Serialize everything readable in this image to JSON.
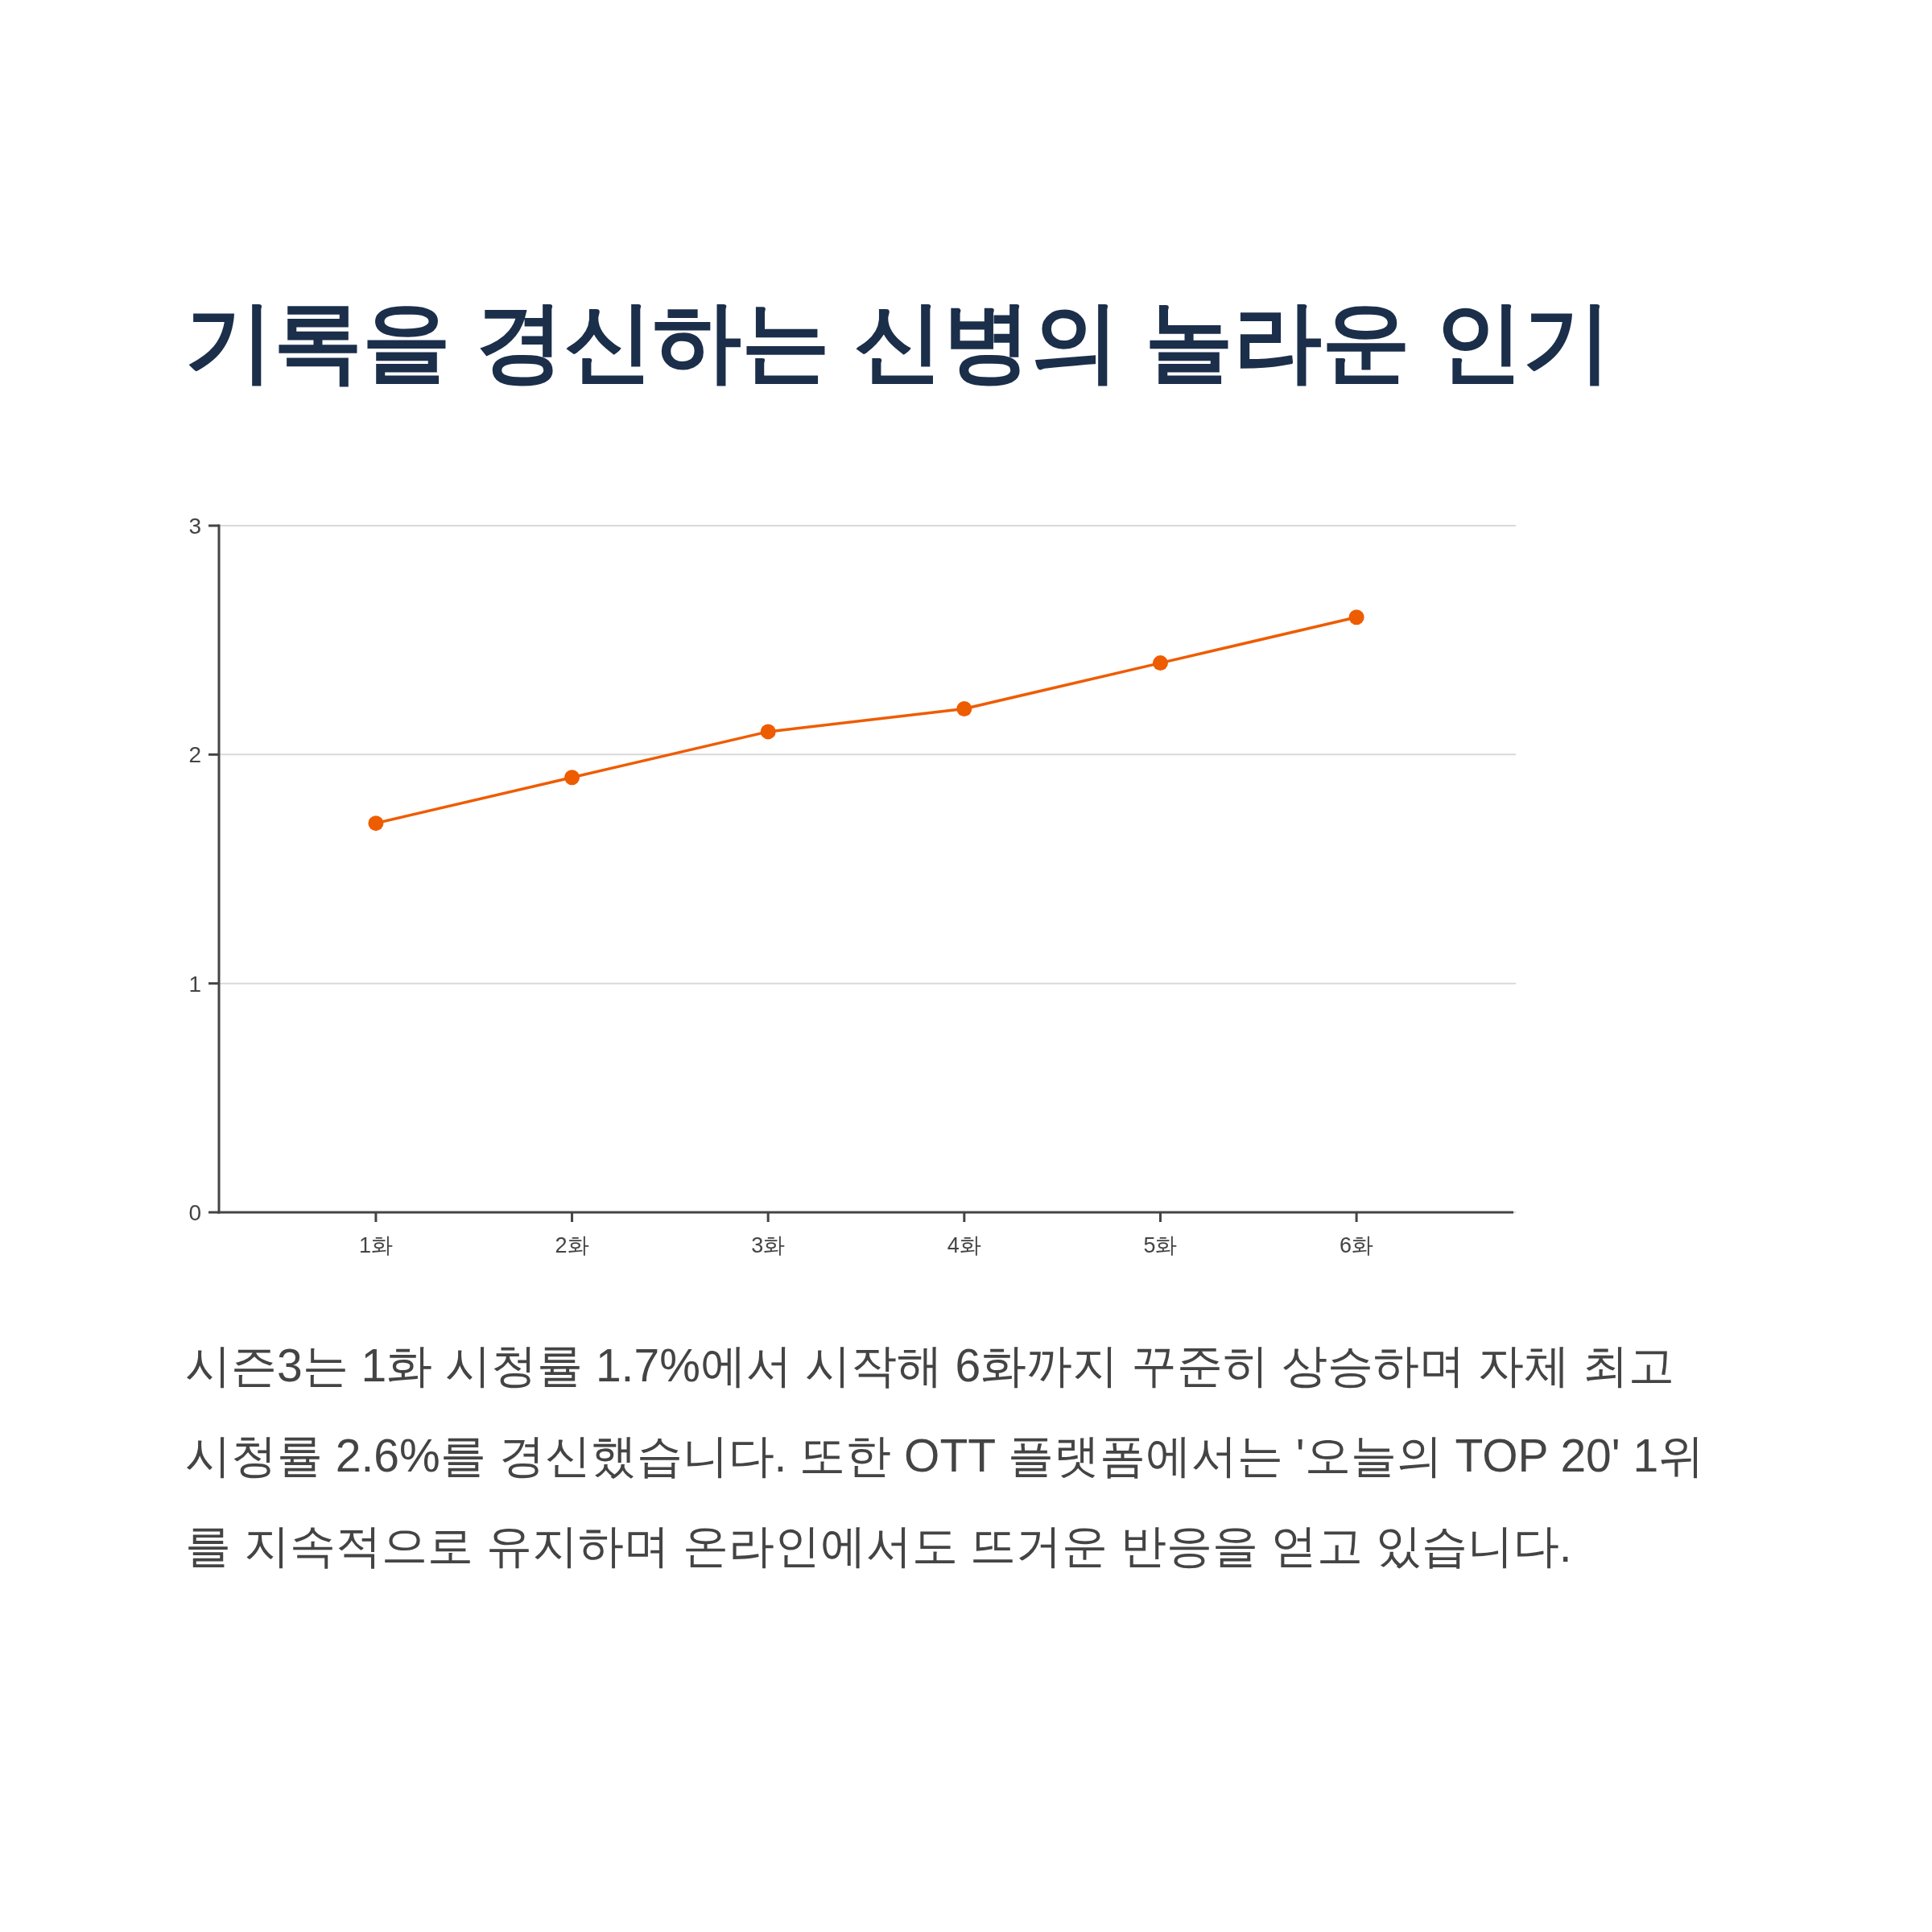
{
  "chart_data": {
    "type": "line",
    "title": "기록을 경신하는 신병의 놀라운 인기",
    "categories": [
      "1화",
      "2화",
      "3화",
      "4화",
      "5화",
      "6화"
    ],
    "series": [
      {
        "color": "#ee5c00",
        "values": [
          1.7,
          1.9,
          2.1,
          2.2,
          2.4,
          2.6
        ]
      }
    ],
    "ylim": [
      0,
      3
    ],
    "yticks": [
      0,
      1,
      2,
      3
    ],
    "grid": "y",
    "marker": "circle",
    "line_style": "solid",
    "annotations": [
      "시즌3는 1화 시청률 1.7%에서 시작해 6화까지 꾸준히 상승하며 자체 최고 시청률 2.6%를 경신했습니다. 또한 OTT 플랫폼에서는 '오늘의 TOP 20' 1위를 지속적으로 유지하며 온라인에서도 뜨거운 반응을 얻고 있습니다."
    ]
  }
}
